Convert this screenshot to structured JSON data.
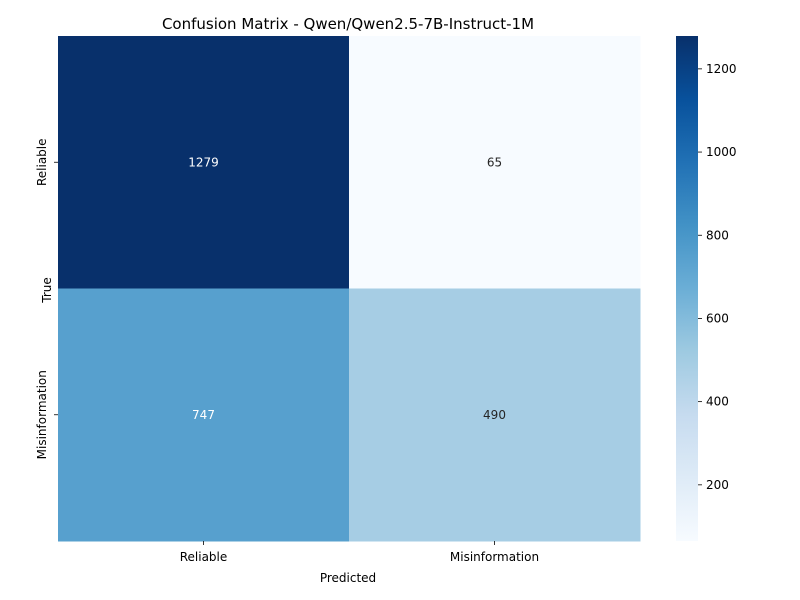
{
  "chart_data": {
    "type": "heatmap",
    "title": "Confusion Matrix - Qwen/Qwen2.5-7B-Instruct-1M",
    "xlabel": "Predicted",
    "ylabel": "True",
    "x_categories": [
      "Reliable",
      "Misinformation"
    ],
    "y_categories": [
      "Reliable",
      "Misinformation"
    ],
    "values": [
      [
        1279,
        65
      ],
      [
        747,
        490
      ]
    ],
    "colormap": "Blues",
    "colorbar": {
      "min": 65,
      "max": 1279,
      "ticks": [
        200,
        400,
        600,
        800,
        1000,
        1200
      ]
    },
    "grid": false
  }
}
